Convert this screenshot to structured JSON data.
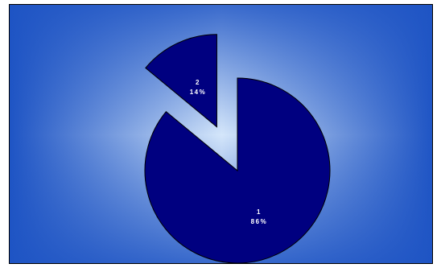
{
  "chart_data": {
    "type": "pie",
    "title": "",
    "categories": [
      "1",
      "2"
    ],
    "values": [
      86,
      14
    ],
    "labels": [
      {
        "category": "1",
        "percent": "86%"
      },
      {
        "category": "2",
        "percent": "14%"
      }
    ],
    "exploded": true,
    "legend": "none",
    "colors": {
      "slice": "#000080",
      "background_center": "#d4e6fa",
      "background_edge": "#1e54c4"
    }
  }
}
